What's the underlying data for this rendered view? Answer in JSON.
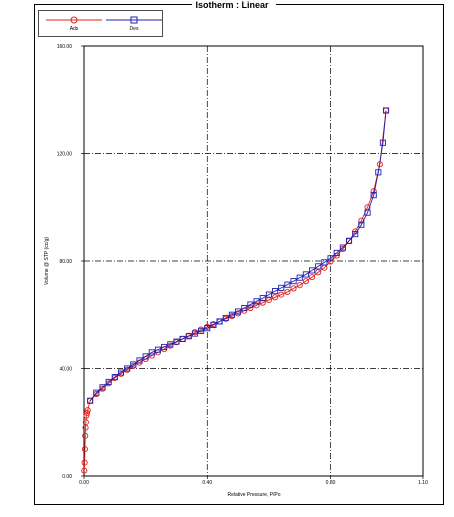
{
  "chart_data": {
    "type": "line",
    "title": "Isotherm :   Linear",
    "xlabel": "Relative Pressure, P/Po",
    "ylabel": "Volume @ STP (cc/g)",
    "xlim": [
      0.0,
      1.1
    ],
    "ylim": [
      0.0,
      160.0
    ],
    "x_ticks": [
      0.0,
      0.4,
      0.8,
      1.1
    ],
    "x_tick_labels": [
      "0.00",
      "0.40",
      "0.80",
      "1.10"
    ],
    "y_ticks": [
      0,
      40,
      80,
      120,
      160
    ],
    "y_tick_labels": [
      "0.00",
      "40.00",
      "80.00",
      "120.00",
      "160.00"
    ],
    "grid": "dash-dot at x=0.4, 0.8 and y=40, 80, 120",
    "legend": "top-left",
    "series": [
      {
        "name": "Ads",
        "color": "#e02020",
        "marker": "circle",
        "points": [
          [
            0.001,
            2.0
          ],
          [
            0.002,
            5.0
          ],
          [
            0.003,
            10.0
          ],
          [
            0.004,
            15.0
          ],
          [
            0.005,
            18.0
          ],
          [
            0.006,
            20.0
          ],
          [
            0.008,
            22.5
          ],
          [
            0.01,
            23.5
          ],
          [
            0.012,
            24.5
          ],
          [
            0.02,
            28.0
          ],
          [
            0.04,
            30.5
          ],
          [
            0.06,
            32.5
          ],
          [
            0.08,
            34.5
          ],
          [
            0.1,
            36.5
          ],
          [
            0.12,
            38.0
          ],
          [
            0.14,
            39.5
          ],
          [
            0.16,
            41.0
          ],
          [
            0.18,
            42.2
          ],
          [
            0.2,
            43.5
          ],
          [
            0.22,
            44.8
          ],
          [
            0.24,
            46.0
          ],
          [
            0.26,
            47.2
          ],
          [
            0.28,
            48.5
          ],
          [
            0.3,
            49.8
          ],
          [
            0.32,
            51.0
          ],
          [
            0.34,
            52.2
          ],
          [
            0.36,
            53.5
          ],
          [
            0.38,
            54.5
          ],
          [
            0.4,
            55.5
          ],
          [
            0.42,
            56.5
          ],
          [
            0.44,
            57.5
          ],
          [
            0.46,
            58.5
          ],
          [
            0.48,
            59.5
          ],
          [
            0.5,
            60.5
          ],
          [
            0.52,
            61.5
          ],
          [
            0.54,
            62.5
          ],
          [
            0.56,
            63.5
          ],
          [
            0.58,
            64.5
          ],
          [
            0.6,
            65.5
          ],
          [
            0.62,
            66.5
          ],
          [
            0.64,
            67.5
          ],
          [
            0.66,
            68.5
          ],
          [
            0.68,
            69.8
          ],
          [
            0.7,
            71.0
          ],
          [
            0.72,
            72.5
          ],
          [
            0.74,
            74.0
          ],
          [
            0.76,
            75.8
          ],
          [
            0.78,
            77.5
          ],
          [
            0.8,
            79.8
          ],
          [
            0.82,
            82.0
          ],
          [
            0.84,
            84.5
          ],
          [
            0.86,
            87.5
          ],
          [
            0.88,
            91.0
          ],
          [
            0.9,
            95.0
          ],
          [
            0.92,
            100.0
          ],
          [
            0.94,
            106.0
          ],
          [
            0.96,
            116.0
          ],
          [
            0.98,
            136.0
          ]
        ]
      },
      {
        "name": "Des",
        "color": "#2020b0",
        "marker": "square",
        "points": [
          [
            0.98,
            136.0
          ],
          [
            0.97,
            124.0
          ],
          [
            0.955,
            113.0
          ],
          [
            0.94,
            104.5
          ],
          [
            0.92,
            98.0
          ],
          [
            0.9,
            93.5
          ],
          [
            0.88,
            90.0
          ],
          [
            0.86,
            87.5
          ],
          [
            0.84,
            85.0
          ],
          [
            0.82,
            83.0
          ],
          [
            0.8,
            81.0
          ],
          [
            0.78,
            79.5
          ],
          [
            0.76,
            78.0
          ],
          [
            0.74,
            76.5
          ],
          [
            0.72,
            75.0
          ],
          [
            0.7,
            73.8
          ],
          [
            0.68,
            72.5
          ],
          [
            0.66,
            71.2
          ],
          [
            0.64,
            70.0
          ],
          [
            0.62,
            68.8
          ],
          [
            0.6,
            67.5
          ],
          [
            0.58,
            66.2
          ],
          [
            0.56,
            65.0
          ],
          [
            0.54,
            63.8
          ],
          [
            0.52,
            62.5
          ],
          [
            0.5,
            61.2
          ],
          [
            0.48,
            60.0
          ],
          [
            0.46,
            58.8
          ],
          [
            0.44,
            57.5
          ],
          [
            0.42,
            56.2
          ],
          [
            0.4,
            55.0
          ],
          [
            0.38,
            54.0
          ],
          [
            0.36,
            53.0
          ],
          [
            0.34,
            52.0
          ],
          [
            0.32,
            51.0
          ],
          [
            0.3,
            50.0
          ],
          [
            0.28,
            49.0
          ],
          [
            0.26,
            48.0
          ],
          [
            0.24,
            47.0
          ],
          [
            0.22,
            46.0
          ],
          [
            0.2,
            44.5
          ],
          [
            0.18,
            43.0
          ],
          [
            0.16,
            41.5
          ],
          [
            0.14,
            40.0
          ],
          [
            0.12,
            38.5
          ],
          [
            0.1,
            36.8
          ],
          [
            0.08,
            35.0
          ],
          [
            0.06,
            33.0
          ],
          [
            0.04,
            31.0
          ],
          [
            0.02,
            28.0
          ]
        ]
      }
    ]
  }
}
